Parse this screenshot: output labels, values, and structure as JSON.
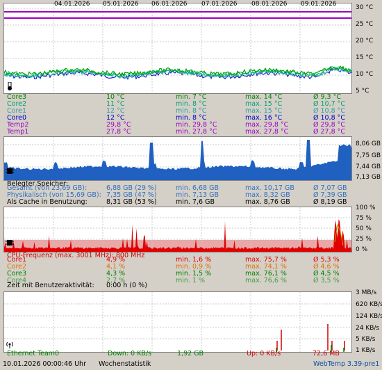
{
  "dates": [
    "04.01.2026",
    "05.01.2026",
    "06.01.2026",
    "07.01.2026",
    "08.01.2026",
    "09.01.2026"
  ],
  "temp_axis": [
    "30 °C",
    "25 °C",
    "20 °C",
    "15 °C",
    "10 °C",
    "5 °C"
  ],
  "mem_axis": [
    "8,06 GB",
    "7,75 GB",
    "7,44 GB",
    "7,13 GB"
  ],
  "cpu_axis": [
    "100 %",
    "75 %",
    "50 %",
    "25 %",
    "0 %"
  ],
  "net_axis": [
    "3 MB/s",
    "620 KB/s",
    "124 KB/s",
    "24 KB/s",
    "5 KB/s",
    "1 KB/s"
  ],
  "colors": {
    "core3": "#00a000",
    "core2": "#00c080",
    "core1": "#40b0b0",
    "core0": "#2020d0",
    "temp2": "#a000c0",
    "temp1": "#a000c0",
    "mem": "#2060c0",
    "cpu_core1": "#e00000",
    "cpu_core2": "#e07000",
    "cpu_core3": "#008000",
    "cpu_core4": "#40a040"
  },
  "temps": [
    {
      "name": "Core3",
      "cur": "10 °C",
      "min": "min. 7 °C",
      "max": "max. 14 °C",
      "avg": "Ø 9,3 °C",
      "color": "#008000"
    },
    {
      "name": "Core2",
      "cur": "11 °C",
      "min": "min. 8 °C",
      "max": "max. 15 °C",
      "avg": "Ø 10,7 °C",
      "color": "#00a070"
    },
    {
      "name": "Core1",
      "cur": "12 °C",
      "min": "min. 8 °C",
      "max": "max. 15 °C",
      "avg": "Ø 10,8 °C",
      "color": "#30a0a0"
    },
    {
      "name": "Core0",
      "cur": "12 °C",
      "min": "min. 8 °C",
      "max": "max. 16 °C",
      "avg": "Ø 10,8 °C",
      "color": "#0000c0"
    },
    {
      "name": "Temp2",
      "cur": "29,8 °C",
      "min": "min. 29,8 °C",
      "max": "max. 29,8 °C",
      "avg": "Ø 29,8 °C",
      "color": "#a000c0"
    },
    {
      "name": "Temp1",
      "cur": "27,8 °C",
      "min": "min. 27,8 °C",
      "max": "max. 27,8 °C",
      "avg": "Ø 27,8 °C",
      "color": "#a000c0"
    }
  ],
  "mem_title": "Belegter Speicher:",
  "mem_rows": [
    {
      "name": "Gesamt (von 23,69 GB):",
      "cur": "6,88 GB (29 %)",
      "min": "min. 6,68 GB",
      "max": "max. 10,17 GB",
      "avg": "Ø 7,07 GB",
      "color": "#3070c0"
    },
    {
      "name": "Physikalisch (von 15,69 GB):",
      "cur": "7,35 GB (47 %)",
      "min": "min. 7,13 GB",
      "max": "max. 8,32 GB",
      "avg": "Ø 7,39 GB",
      "color": "#3070c0"
    },
    {
      "name": "Als Cache in Benutzung:",
      "cur": "8,31 GB (53 %)",
      "min": "min. 7,6 GB",
      "max": "max. 8,76 GB",
      "avg": "Ø 8,19 GB",
      "color": "#000000"
    }
  ],
  "cpu_title": "CPU-Frequenz (max. 3001 MHz): 800 MHz",
  "cpu_rows": [
    {
      "name": "Core1",
      "cur": "4,9 %",
      "min": "min. 1,6 %",
      "max": "max. 75,7 %",
      "avg": "Ø 5,3 %",
      "color": "#e00000"
    },
    {
      "name": "Core2",
      "cur": "4,1 %",
      "min": "min. 0,9 %",
      "max": "max. 74,1 %",
      "avg": "Ø 4,6 %",
      "color": "#e07000"
    },
    {
      "name": "Core3",
      "cur": "4,3 %",
      "min": "min. 1,5 %",
      "max": "max. 76,1 %",
      "avg": "Ø 4,5 %",
      "color": "#008000"
    },
    {
      "name": "Core4",
      "cur": "2,7 %",
      "min": "min. 1 %",
      "max": "max. 76,6 %",
      "avg": "Ø 3,5 %",
      "color": "#40a040"
    }
  ],
  "user_activity": {
    "label": "Zeit mit Benutzeraktivität:",
    "value": "0:00 h (0 %)"
  },
  "net": {
    "name": "Ethernet Team0",
    "down": "Down: 0 KB/s",
    "total": "1,92 GB",
    "up": "Up: 0 KB/s",
    "total2": "72,6 MB"
  },
  "footer": {
    "datetime": "10.01.2026 00:00:46 Uhr",
    "view": "Wochenstatistik",
    "app": "WebTemp 3.39-pre1"
  }
}
